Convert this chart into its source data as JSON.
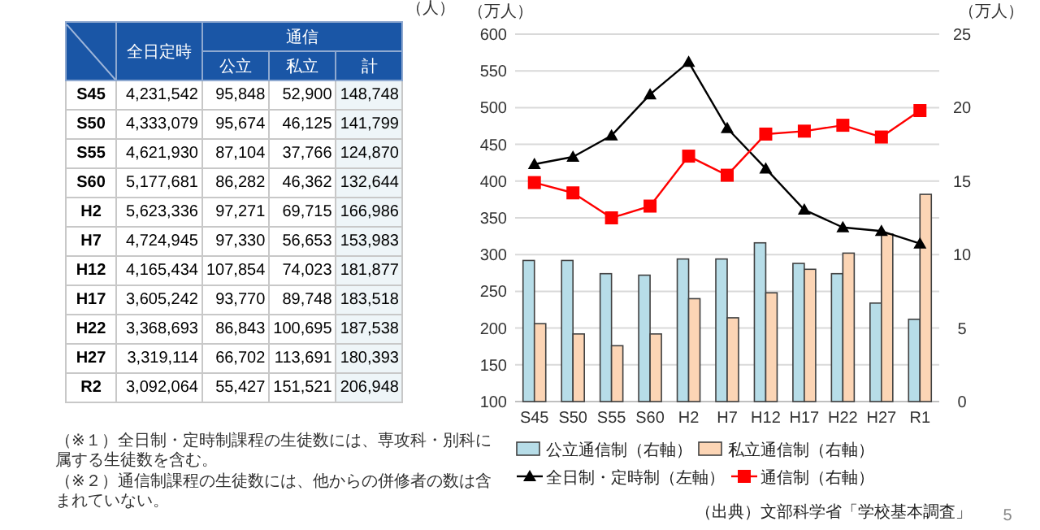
{
  "chart_data": [
    {
      "type": "other",
      "categories": [
        "S45",
        "S50",
        "S55",
        "S60",
        "H2",
        "H7",
        "H12",
        "H17",
        "H22",
        "H27",
        "R2"
      ],
      "series": [
        {
          "name": "全日定時",
          "values": [
            4231542,
            4333079,
            4621930,
            5177681,
            5623336,
            4724945,
            4165434,
            3605242,
            3368693,
            3319114,
            3092064
          ],
          "value_labels": [
            "4,231,542",
            "4,333,079",
            "4,621,930",
            "5,177,681",
            "5,623,336",
            "4,724,945",
            "4,165,434",
            "3,605,242",
            "3,368,693",
            "3,319,114",
            "3,092,064"
          ]
        },
        {
          "name": "公立",
          "values": [
            95848,
            95674,
            87104,
            86282,
            97271,
            97330,
            107854,
            93770,
            86843,
            66702,
            55427
          ],
          "value_labels": [
            "95,848",
            "95,674",
            "87,104",
            "86,282",
            "97,271",
            "97,330",
            "107,854",
            "93,770",
            "86,843",
            "66,702",
            "55,427"
          ]
        },
        {
          "name": "私立",
          "values": [
            52900,
            46125,
            37766,
            46362,
            69715,
            56653,
            74023,
            89748,
            100695,
            113691,
            151521
          ],
          "value_labels": [
            "52,900",
            "46,125",
            "37,766",
            "46,362",
            "69,715",
            "56,653",
            "74,023",
            "89,748",
            "100,695",
            "113,691",
            "151,521"
          ]
        },
        {
          "name": "計",
          "values": [
            148748,
            141799,
            124870,
            132644,
            166986,
            153983,
            181877,
            183518,
            187538,
            180393,
            206948
          ],
          "value_labels": [
            "148,748",
            "141,799",
            "124,870",
            "132,644",
            "166,986",
            "153,983",
            "181,877",
            "183,518",
            "187,538",
            "180,393",
            "206,948"
          ]
        }
      ],
      "annotations": [
        "（人）",
        "通信",
        "（※１）全日制・定時制課程の生徒数には、専攻科・別科に属する生徒数を含む。",
        "（※２）通信制課程の生徒数には、他からの併修者の数は含まれていない。"
      ]
    },
    {
      "type": "bar",
      "categories": [
        "S45",
        "S50",
        "S55",
        "S60",
        "H2",
        "H7",
        "H12",
        "H17",
        "H22",
        "H27",
        "R1"
      ],
      "series": [
        {
          "name": "公立通信制（右軸）",
          "type": "bar",
          "axis": "y2",
          "color": "#b7dde8",
          "values": [
            9.6,
            9.6,
            8.7,
            8.6,
            9.7,
            9.7,
            10.8,
            9.4,
            8.7,
            6.7,
            5.6
          ]
        },
        {
          "name": "私立通信制（右軸）",
          "type": "bar",
          "axis": "y2",
          "color": "#fcd5b5",
          "values": [
            5.3,
            4.6,
            3.8,
            4.6,
            7.0,
            5.7,
            7.4,
            9.0,
            10.1,
            11.4,
            14.1
          ]
        },
        {
          "name": "全日制・定時制（左軸）",
          "type": "line",
          "color": "#000000",
          "marker": "triangle",
          "values": [
            423,
            433,
            462,
            518,
            562,
            472,
            417,
            361,
            337,
            332,
            315
          ]
        },
        {
          "name": "通信制（右軸）",
          "type": "line",
          "axis": "y2",
          "color": "#ff0000",
          "marker": "square",
          "values": [
            14.9,
            14.2,
            12.5,
            13.3,
            16.7,
            15.4,
            18.2,
            18.4,
            18.8,
            18.0,
            19.8
          ]
        }
      ],
      "ylabel": "（万人）",
      "y2label": "（万人）",
      "ylim": [
        100,
        600
      ],
      "yticks": [
        100,
        150,
        200,
        250,
        300,
        350,
        400,
        450,
        500,
        550,
        600
      ],
      "y2lim": [
        0,
        25
      ],
      "y2ticks": [
        0,
        5,
        10,
        15,
        20,
        25
      ],
      "grid": "y",
      "legend": "bottom",
      "annotations": [
        "（出典）文部科学省「学校基本調査」",
        "5"
      ]
    }
  ]
}
